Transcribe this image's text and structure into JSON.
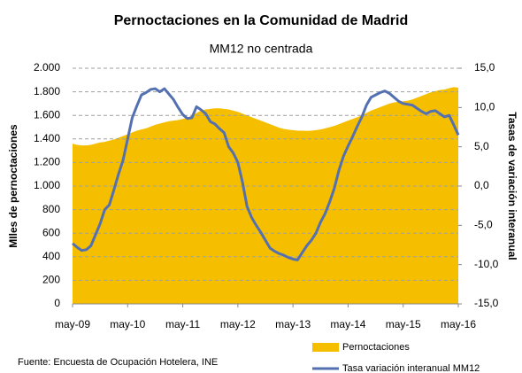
{
  "chart_data": {
    "type": "area-line",
    "title": "Pernoctaciones en la Comunidad de Madrid",
    "subtitle": "MM12 no centrada",
    "y_label": "MIles de pernoctaciones",
    "y2_label": "Tasas de variación  interanual",
    "source": "Fuente: Encuesta de Ocupación Hotelera, INE",
    "categories": [
      "may-09",
      null,
      null,
      null,
      null,
      null,
      null,
      null,
      null,
      null,
      null,
      null,
      "may-10",
      null,
      null,
      null,
      null,
      null,
      null,
      null,
      null,
      null,
      null,
      null,
      "may-11",
      null,
      null,
      null,
      null,
      null,
      null,
      null,
      null,
      null,
      null,
      null,
      "may-12",
      null,
      null,
      null,
      null,
      null,
      null,
      null,
      null,
      null,
      null,
      null,
      "may-13",
      null,
      null,
      null,
      null,
      null,
      null,
      null,
      null,
      null,
      null,
      null,
      "may-14",
      null,
      null,
      null,
      null,
      null,
      null,
      null,
      null,
      null,
      null,
      null,
      "may-15",
      null,
      null,
      null,
      null,
      null,
      null,
      null,
      null,
      null,
      null,
      null,
      "may-16"
    ],
    "series": [
      {
        "name": "Pernoctaciones",
        "color": "#f5bf00",
        "kind": "area",
        "values": [
          1360,
          1350,
          1345,
          1345,
          1350,
          1360,
          1370,
          1375,
          1385,
          1395,
          1410,
          1425,
          1440,
          1455,
          1470,
          1480,
          1490,
          1505,
          1520,
          1530,
          1540,
          1550,
          1555,
          1560,
          1570,
          1580,
          1600,
          1620,
          1640,
          1650,
          1655,
          1660,
          1660,
          1655,
          1650,
          1640,
          1630,
          1615,
          1600,
          1585,
          1570,
          1555,
          1540,
          1525,
          1510,
          1495,
          1485,
          1478,
          1475,
          1470,
          1470,
          1468,
          1470,
          1475,
          1480,
          1490,
          1500,
          1510,
          1525,
          1540,
          1555,
          1570,
          1585,
          1600,
          1620,
          1640,
          1655,
          1670,
          1685,
          1700,
          1710,
          1715,
          1720,
          1725,
          1735,
          1750,
          1765,
          1780,
          1795,
          1805,
          1815,
          1820,
          1830,
          1840,
          1835
        ]
      },
      {
        "name": "Tasa variación interanual  MM12",
        "color": "#5470b0",
        "kind": "line",
        "axis": "y2",
        "values": [
          -7.3,
          -7.8,
          -8.2,
          -8.1,
          -7.6,
          -6.2,
          -4.8,
          -3.0,
          -2.4,
          -0.5,
          1.5,
          3.3,
          6.0,
          8.7,
          10.2,
          11.6,
          11.9,
          12.3,
          12.4,
          12.0,
          12.4,
          11.7,
          11.0,
          10.0,
          9.1,
          8.6,
          8.7,
          10.1,
          9.7,
          9.2,
          8.2,
          7.9,
          7.3,
          6.8,
          5.0,
          4.2,
          3.0,
          0.5,
          -2.6,
          -4.0,
          -5.0,
          -5.9,
          -6.9,
          -7.9,
          -8.3,
          -8.6,
          -8.8,
          -9.1,
          -9.3,
          -9.4,
          -8.5,
          -7.6,
          -6.9,
          -6.0,
          -4.6,
          -3.5,
          -2.0,
          -0.3,
          2.0,
          3.8,
          5.1,
          6.3,
          7.6,
          8.8,
          10.3,
          11.3,
          11.6,
          11.9,
          12.1,
          11.8,
          11.3,
          10.8,
          10.5,
          10.4,
          10.3,
          9.9,
          9.5,
          9.2,
          9.5,
          9.6,
          9.2,
          8.8,
          9.0,
          7.8,
          6.5
        ]
      }
    ],
    "ylim": [
      0,
      2000
    ],
    "yticks": [
      0,
      200,
      400,
      600,
      800,
      {
        "value": 1000,
        "label": "1.000"
      },
      {
        "value": 1200,
        "label": "1.200"
      },
      {
        "value": 1400,
        "label": "1.400"
      },
      {
        "value": 1600,
        "label": "1.600"
      },
      {
        "value": 1800,
        "label": "1.800"
      },
      {
        "value": 2000,
        "label": "2.000"
      }
    ],
    "y2lim": [
      -15,
      15
    ],
    "y2ticks": [
      {
        "value": -15,
        "label": "-15,0"
      },
      {
        "value": -10,
        "label": "-10,0"
      },
      {
        "value": -5,
        "label": "-5,0"
      },
      {
        "value": 0,
        "label": "0,0"
      },
      {
        "value": 5,
        "label": "5,0"
      },
      {
        "value": 10,
        "label": "10,0"
      },
      {
        "value": 15,
        "label": "15,0"
      }
    ],
    "grid": true,
    "legend": "bottom-right"
  }
}
